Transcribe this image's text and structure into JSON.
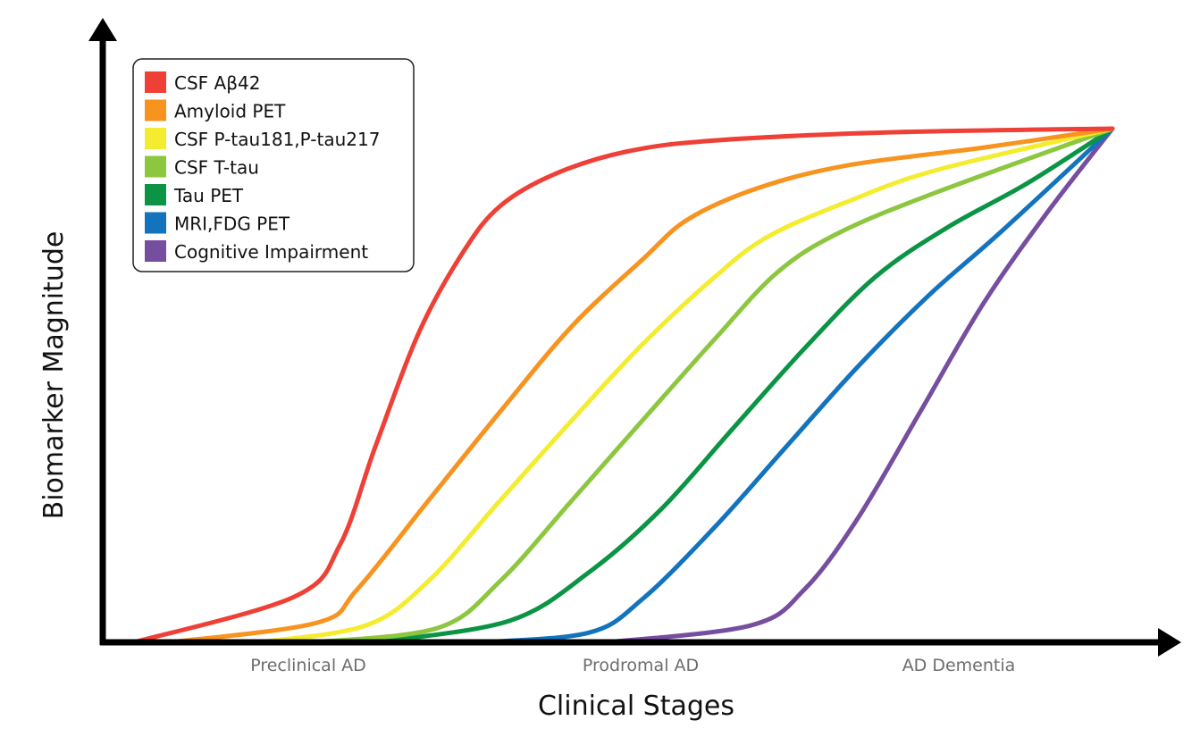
{
  "chart_data": {
    "type": "line",
    "title": "",
    "xlabel": "Clinical Stages",
    "ylabel": "Biomarker Magnitude",
    "x_tick_labels": [
      "Preclinical AD",
      "Prodromal AD",
      "AD Dementia"
    ],
    "xlim": [
      0,
      100
    ],
    "ylim": [
      0,
      100
    ],
    "grid": false,
    "legend_position": "top-left",
    "series": [
      {
        "name": "CSF Aβ42",
        "color": "#ee4036",
        "points": [
          [
            3.1,
            0
          ],
          [
            19.0,
            8.9
          ],
          [
            23.5,
            19.0
          ],
          [
            27.0,
            38.1
          ],
          [
            31.4,
            60.7
          ],
          [
            35.8,
            76.3
          ],
          [
            39.4,
            85.0
          ],
          [
            44.7,
            91.1
          ],
          [
            51.8,
            95.5
          ],
          [
            60.6,
            97.7
          ],
          [
            78.3,
            99.3
          ],
          [
            100,
            100
          ]
        ]
      },
      {
        "name": "Amyloid PET",
        "color": "#f7931e",
        "points": [
          [
            6.6,
            0
          ],
          [
            21.2,
            3.8
          ],
          [
            25.2,
            10.3
          ],
          [
            32.3,
            27.7
          ],
          [
            39.4,
            45.0
          ],
          [
            46.5,
            61.6
          ],
          [
            53.5,
            74.6
          ],
          [
            58.0,
            82.4
          ],
          [
            65.0,
            88.5
          ],
          [
            73.9,
            92.9
          ],
          [
            87.2,
            96.3
          ],
          [
            100,
            100
          ]
        ]
      },
      {
        "name": "CSF P-tau181,P-tau217",
        "color": "#f4ec2f",
        "points": [
          [
            15.5,
            0
          ],
          [
            26.1,
            3.3
          ],
          [
            32.3,
            12.0
          ],
          [
            39.4,
            27.7
          ],
          [
            46.5,
            43.3
          ],
          [
            53.5,
            58.1
          ],
          [
            60.6,
            71.1
          ],
          [
            65.9,
            79.0
          ],
          [
            73.9,
            85.9
          ],
          [
            82.7,
            92.0
          ],
          [
            100,
            100
          ]
        ]
      },
      {
        "name": "CSF T-tau",
        "color": "#8dc63f",
        "points": [
          [
            20.8,
            0
          ],
          [
            33.2,
            2.8
          ],
          [
            39.4,
            12.0
          ],
          [
            46.5,
            27.7
          ],
          [
            53.5,
            43.3
          ],
          [
            60.6,
            59.0
          ],
          [
            66.8,
            72.0
          ],
          [
            73.0,
            79.8
          ],
          [
            82.7,
            87.7
          ],
          [
            100,
            100
          ]
        ]
      },
      {
        "name": "Tau PET",
        "color": "#0a9444",
        "points": [
          [
            27.0,
            0
          ],
          [
            40.3,
            4.2
          ],
          [
            48.2,
            13.7
          ],
          [
            55.3,
            25.9
          ],
          [
            62.4,
            41.6
          ],
          [
            69.5,
            57.2
          ],
          [
            76.5,
            71.1
          ],
          [
            83.6,
            80.7
          ],
          [
            91.6,
            89.4
          ],
          [
            100,
            100
          ]
        ]
      },
      {
        "name": "MRI,FDG PET",
        "color": "#1374bd",
        "points": [
          [
            37.6,
            0
          ],
          [
            48.2,
            1.9
          ],
          [
            53.5,
            8.5
          ],
          [
            60.6,
            22.4
          ],
          [
            67.7,
            38.1
          ],
          [
            74.8,
            53.7
          ],
          [
            81.9,
            67.7
          ],
          [
            88.9,
            79.8
          ],
          [
            100,
            100
          ]
        ]
      },
      {
        "name": "Cognitive Impairment",
        "color": "#764ea0",
        "points": [
          [
            50.0,
            0
          ],
          [
            64.2,
            3.3
          ],
          [
            69.5,
            10.3
          ],
          [
            74.8,
            24.2
          ],
          [
            81.0,
            45.0
          ],
          [
            87.2,
            65.9
          ],
          [
            93.4,
            83.3
          ],
          [
            100,
            100
          ]
        ]
      }
    ]
  }
}
